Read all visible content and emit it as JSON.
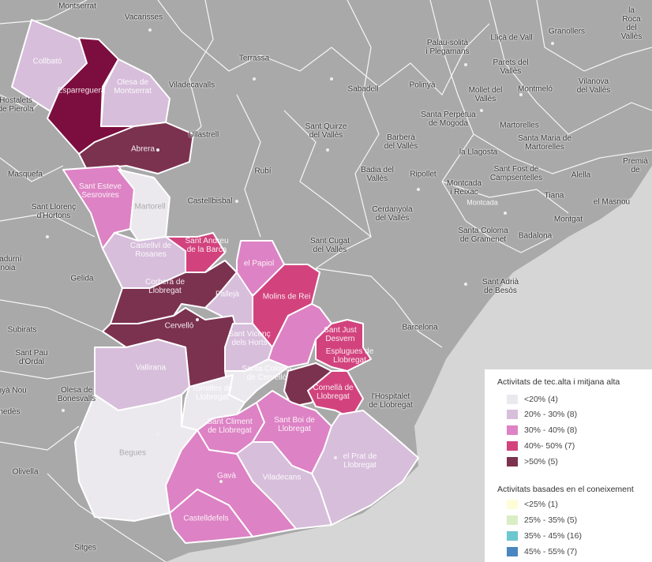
{
  "colors": {
    "sea": "#d6d6d6",
    "land": "#a9a9a9",
    "lt20": "#ece9ee",
    "r20_30": "#d7bedb",
    "r30_40": "#dd82c4",
    "r40_50": "#d2437e",
    "gt50": "#7b324f",
    "gt50_dark": "#7c0e3f"
  },
  "places": [
    {
      "id": "montserrat",
      "text": "Montserrat"
    },
    {
      "id": "vacarisses",
      "text": "Vacarisses"
    },
    {
      "id": "terrassa",
      "text": "Terrassa"
    },
    {
      "id": "viladecavalls",
      "text": "Viladecavalls"
    },
    {
      "id": "ullastrell",
      "text": "Ullastrell"
    },
    {
      "id": "sabadell",
      "text": "Sabadell"
    },
    {
      "id": "polinya",
      "text": "Polinyà"
    },
    {
      "id": "palau",
      "text": "Palau-solità\ni Plegamans"
    },
    {
      "id": "llica",
      "text": "Lliçà de Vall"
    },
    {
      "id": "granollers",
      "text": "Granollers"
    },
    {
      "id": "laroca",
      "text": "la Roca\ndel Vallès"
    },
    {
      "id": "parets",
      "text": "Parets del\nVallès"
    },
    {
      "id": "montmelo",
      "text": "Montmeló"
    },
    {
      "id": "vilanova",
      "text": "Vilanova\ndel Vallès"
    },
    {
      "id": "mollet",
      "text": "Mollet del\nVallès"
    },
    {
      "id": "santaperpetua",
      "text": "Santa Perpètua\nde Mogoda"
    },
    {
      "id": "santquirze",
      "text": "Sant Quirze\ndel Vallès"
    },
    {
      "id": "barbera",
      "text": "Barberà\ndel Vallès"
    },
    {
      "id": "martorelles",
      "text": "Martorelles"
    },
    {
      "id": "santamaria",
      "text": "Santa Maria de\nMartorelles"
    },
    {
      "id": "lallagosta",
      "text": "la Llagosta"
    },
    {
      "id": "hostalets",
      "text": "Hostalets\nde Pierola"
    },
    {
      "id": "masquefa",
      "text": "Masquefa"
    },
    {
      "id": "rubi",
      "text": "Rubí"
    },
    {
      "id": "badia",
      "text": "Badia del\nVallès"
    },
    {
      "id": "ripollet",
      "text": "Ripollet"
    },
    {
      "id": "santfost",
      "text": "Sant Fost de\nCampsentelles"
    },
    {
      "id": "alella",
      "text": "Alella"
    },
    {
      "id": "premia",
      "text": "Premià de"
    },
    {
      "id": "montcada",
      "text": "Montcada\ni Reixac"
    },
    {
      "id": "montcada2",
      "text": "Montcada"
    },
    {
      "id": "tiana",
      "text": "Tiana"
    },
    {
      "id": "elmasnou",
      "text": "el Masnou"
    },
    {
      "id": "montgat",
      "text": "Montgat"
    },
    {
      "id": "castellbisbal",
      "text": "Castellbisbal"
    },
    {
      "id": "santllorenc",
      "text": "Sant Llorenç\nd'Hortons"
    },
    {
      "id": "cerdanyola",
      "text": "Cerdanyola\ndel Vallès"
    },
    {
      "id": "santacoloma",
      "text": "Santa Coloma\nde Gramenet"
    },
    {
      "id": "badalona",
      "text": "Badalona"
    },
    {
      "id": "santcugat",
      "text": "Sant Cugat\ndel Vallès"
    },
    {
      "id": "santadria",
      "text": "Sant Adrià\nde Besòs"
    },
    {
      "id": "sadurni",
      "text": "Sadurní\nnoia"
    },
    {
      "id": "gelida",
      "text": "Gelida"
    },
    {
      "id": "barcelona",
      "text": "Barcelona"
    },
    {
      "id": "subirats",
      "text": "Subirats"
    },
    {
      "id": "santpau",
      "text": "Sant Pau\nd'Ordal"
    },
    {
      "id": "olesabon",
      "text": "Olesa de\nBonesvalls"
    },
    {
      "id": "lhospitalet",
      "text": "l'Hospitalet\nde Llobregat"
    },
    {
      "id": "olivella",
      "text": "Olivella"
    },
    {
      "id": "sitges",
      "text": "Sitges"
    },
    {
      "id": "ynou",
      "text": "inyà Nou"
    },
    {
      "id": "nedes",
      "text": "nedès"
    }
  ],
  "municipalities": [
    {
      "id": "collbato",
      "text": "Collbató"
    },
    {
      "id": "esparreguera",
      "text": "Esparreguera"
    },
    {
      "id": "olesa",
      "text": "Olesa de\nMontserrat"
    },
    {
      "id": "abrera",
      "text": "Abrera"
    },
    {
      "id": "santesteve",
      "text": "Sant Esteve\nSesrovires"
    },
    {
      "id": "martorell",
      "text": "Martorell"
    },
    {
      "id": "castellvi",
      "text": "Castellví de\nRosanes"
    },
    {
      "id": "santandreu",
      "text": "Sant Andreu\nde la Barca"
    },
    {
      "id": "elpapiol",
      "text": "el Papiol"
    },
    {
      "id": "molins",
      "text": "Molins de Rei"
    },
    {
      "id": "corbera",
      "text": "Corbera de\nLlobregat"
    },
    {
      "id": "palleja",
      "text": "Pallejà"
    },
    {
      "id": "cervello",
      "text": "Cervelló"
    },
    {
      "id": "santvicenc",
      "text": "Sant Vicenç\ndels Horts"
    },
    {
      "id": "santjust",
      "text": "Sant Just\nDesvern"
    },
    {
      "id": "esplugues",
      "text": "Esplugues de\nLlobregat"
    },
    {
      "id": "vallirana",
      "text": "Vallirana"
    },
    {
      "id": "stacoloma",
      "text": "Santa Coloma\nde Cervelló"
    },
    {
      "id": "cornella",
      "text": "Cornellà de\nLlobregat"
    },
    {
      "id": "torrelles",
      "text": "Torrelles de\nLlobregat"
    },
    {
      "id": "santcliment",
      "text": "Sant Climent\nde Llobregat"
    },
    {
      "id": "santboi",
      "text": "Sant Boi de\nLlobregat"
    },
    {
      "id": "elprat",
      "text": "el Prat de\nLlobregat"
    },
    {
      "id": "begues",
      "text": "Begues"
    },
    {
      "id": "gava",
      "text": "Gavà"
    },
    {
      "id": "viladecans",
      "text": "Viladecans"
    },
    {
      "id": "castelldefels",
      "text": "Castelldefels"
    }
  ],
  "legend1": {
    "title": "Activitats de tec.alta i mitjana alta",
    "items": [
      {
        "label": "<20% (4)",
        "color": "#ece9ee"
      },
      {
        "label": "20% - 30% (8)",
        "color": "#d7bedb"
      },
      {
        "label": "30% - 40% (8)",
        "color": "#dd82c4"
      },
      {
        "label": "40%- 50% (7)",
        "color": "#d2437e"
      },
      {
        "label": ">50% (5)",
        "color": "#7b324f"
      }
    ]
  },
  "legend2": {
    "title": "Activitats basades en el coneixement",
    "items": [
      {
        "label": "<25% (1)",
        "color": "#fdfdd8"
      },
      {
        "label": "25% - 35% (5)",
        "color": "#d9eec4"
      },
      {
        "label": "35% - 45% (16)",
        "color": "#6cc7cf"
      },
      {
        "label": "45% - 55% (7)",
        "color": "#4a86c0"
      }
    ]
  }
}
